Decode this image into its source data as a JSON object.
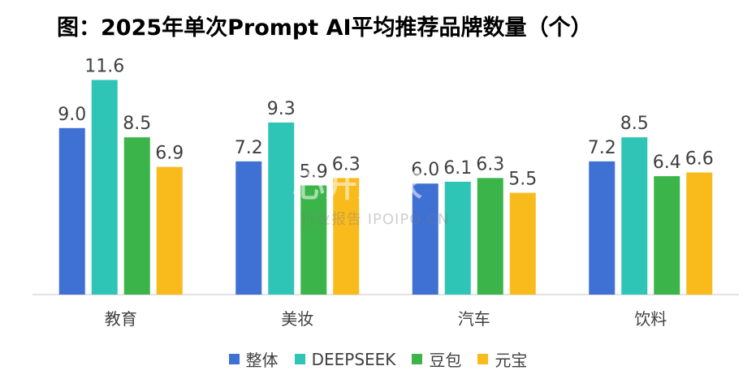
{
  "chart_data": {
    "type": "bar",
    "title": "图：2025年单次Prompt AI平均推荐品牌数量（个）",
    "categories": [
      "教育",
      "美妆",
      "汽车",
      "饮料"
    ],
    "series": [
      {
        "name": "整体",
        "color": "#3F70D4",
        "values": [
          9.0,
          7.2,
          6.0,
          7.2
        ],
        "labels": [
          "9.0",
          "7.2",
          "6.0",
          "7.2"
        ]
      },
      {
        "name": "DEEPSEEK",
        "color": "#2EC4B6",
        "values": [
          11.6,
          9.3,
          6.1,
          8.5
        ],
        "labels": [
          "11.6",
          "9.3",
          "6.1",
          "8.5"
        ]
      },
      {
        "name": "豆包",
        "color": "#3BB54A",
        "values": [
          8.5,
          5.9,
          6.3,
          6.4
        ],
        "labels": [
          "8.5",
          "5.9",
          "6.3",
          "6.4"
        ]
      },
      {
        "name": "元宝",
        "color": "#F9BA1C",
        "values": [
          6.9,
          6.3,
          5.5,
          6.6
        ],
        "labels": [
          "6.9",
          "6.3",
          "5.5",
          "6.6"
        ]
      }
    ],
    "ylim": [
      0,
      14
    ],
    "grid": false,
    "legend_position": "bottom",
    "xlabel": "",
    "ylabel": ""
  },
  "watermark": {
    "main": "心开购家",
    "sub": "行业报告 IPOIPO.CN"
  }
}
